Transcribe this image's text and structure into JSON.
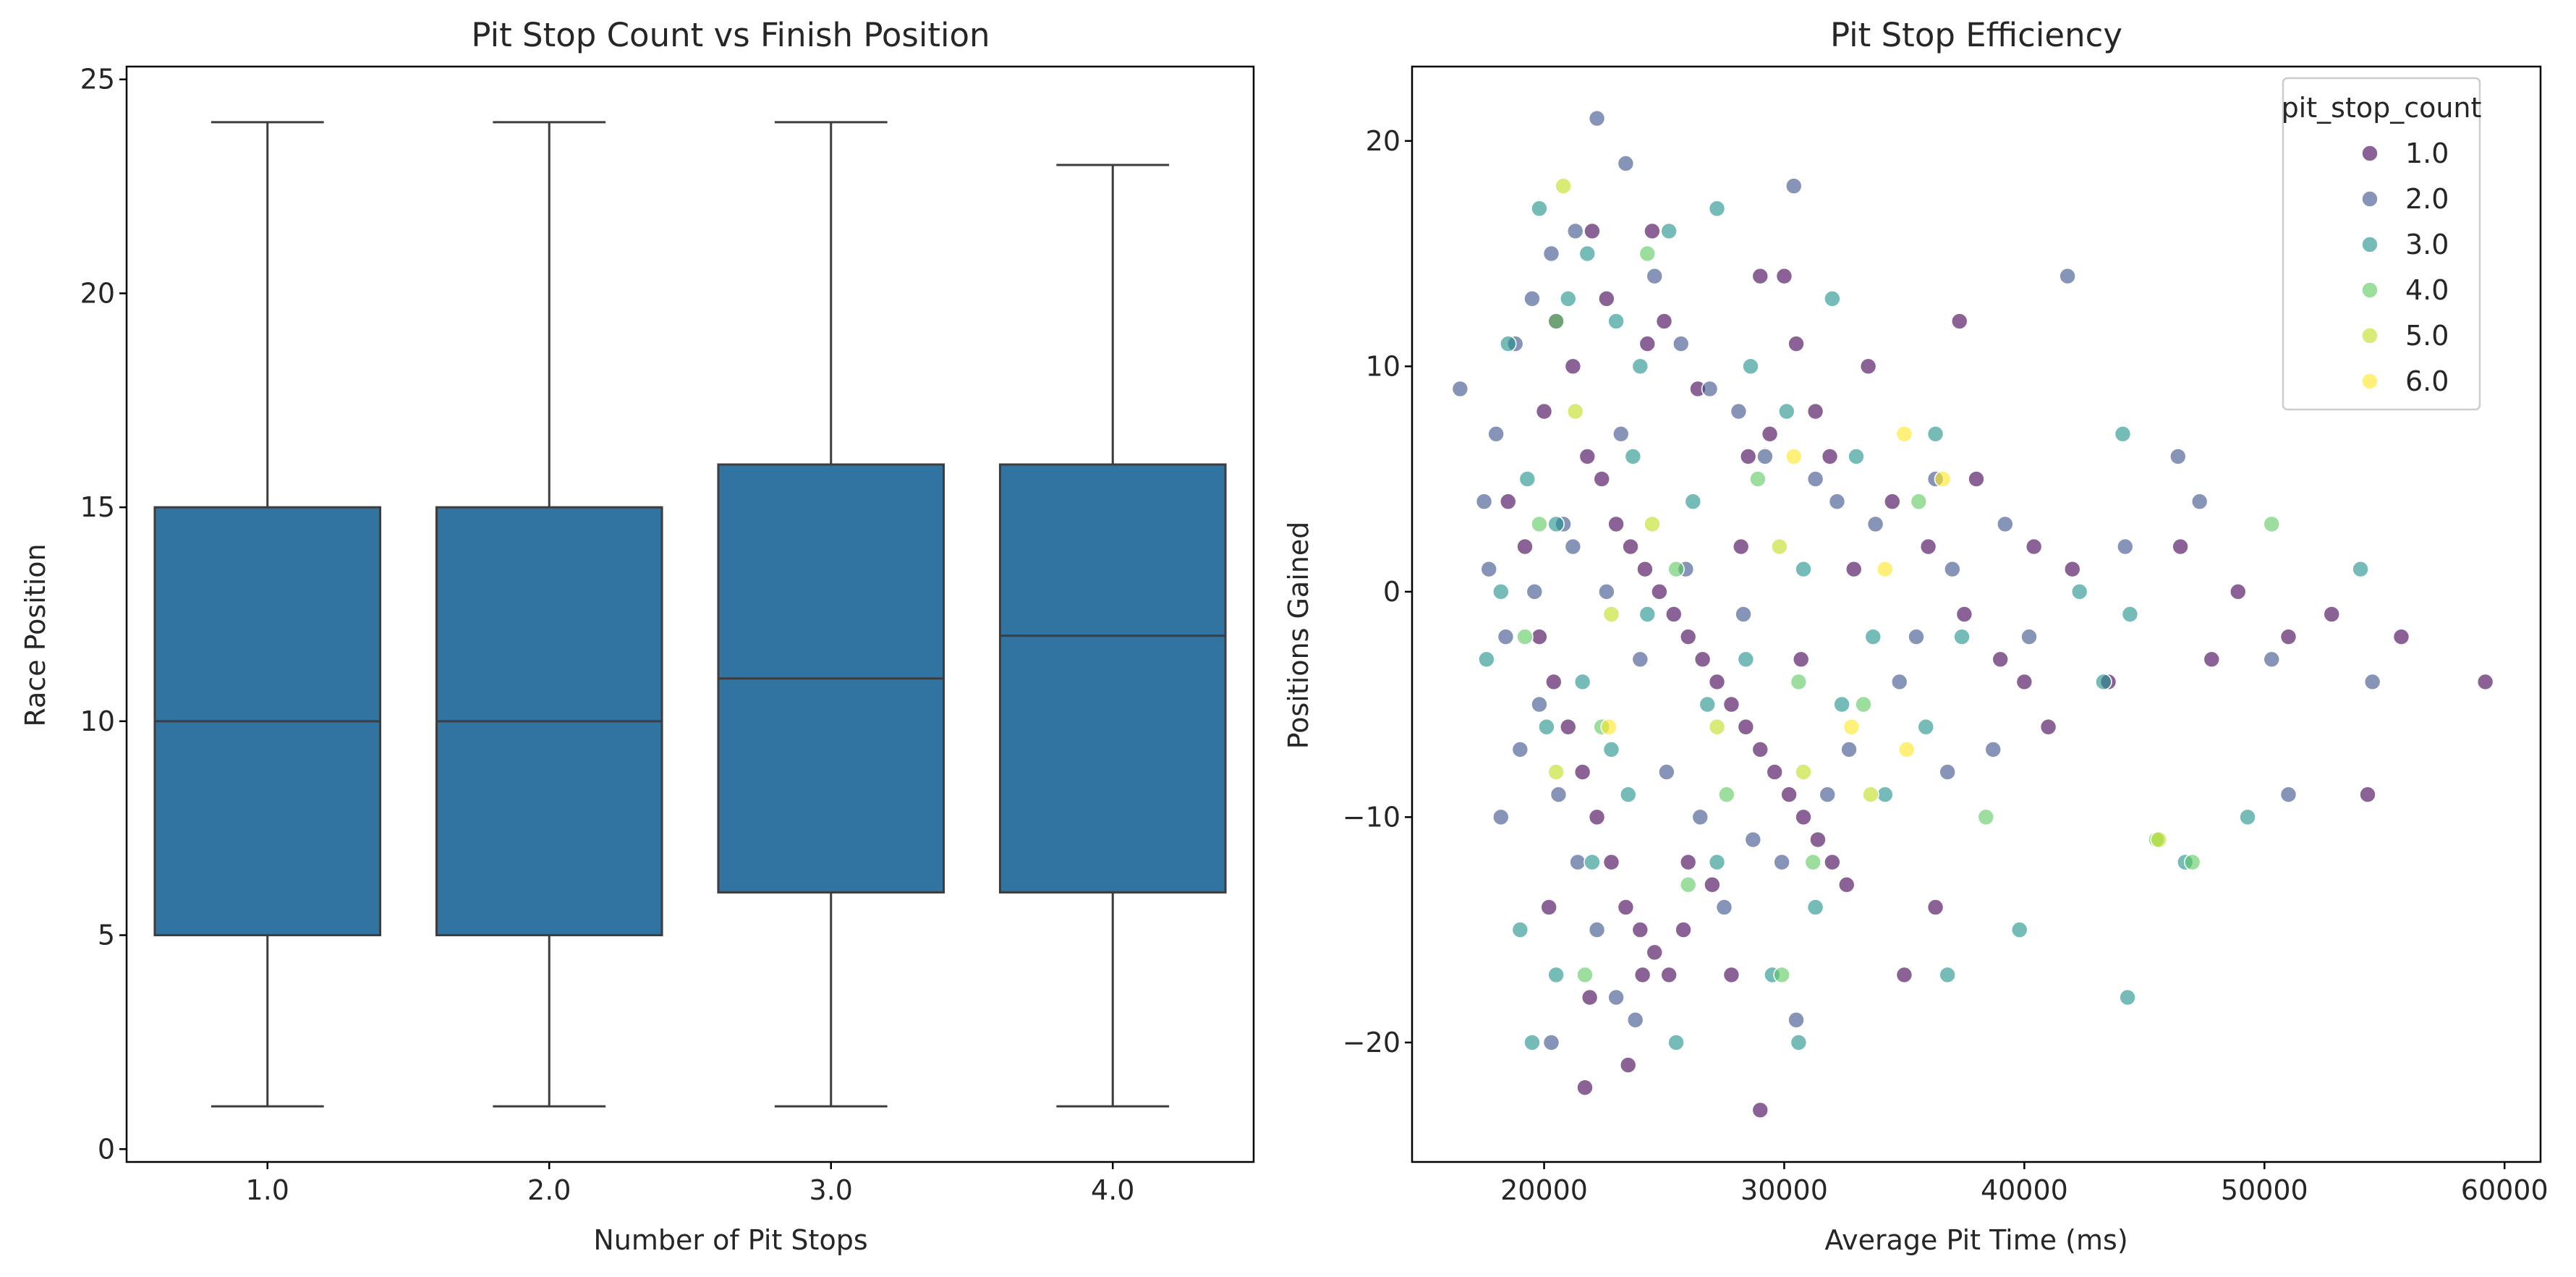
{
  "chart_data": [
    {
      "type": "box",
      "title": "Pit Stop Count vs Finish Position",
      "xlabel": "Number of Pit Stops",
      "ylabel": "Race Position",
      "ylim": [
        -0.3,
        25.3
      ],
      "yticks": [
        0,
        5,
        10,
        15,
        20,
        25
      ],
      "categories": [
        "1.0",
        "2.0",
        "3.0",
        "4.0"
      ],
      "box_color": "#3274a1",
      "boxes": [
        {
          "whislo": 1,
          "q1": 5,
          "median": 10,
          "q3": 15,
          "whishi": 24
        },
        {
          "whislo": 1,
          "q1": 5,
          "median": 10,
          "q3": 15,
          "whishi": 24
        },
        {
          "whislo": 1,
          "q1": 6,
          "median": 11,
          "q3": 16,
          "whishi": 24
        },
        {
          "whislo": 1,
          "q1": 6,
          "median": 12,
          "q3": 16,
          "whishi": 23
        }
      ]
    },
    {
      "type": "scatter",
      "title": "Pit Stop Efficiency",
      "xlabel": "Average Pit Time (ms)",
      "ylabel": "Positions Gained",
      "xlim": [
        14500,
        61500
      ],
      "ylim": [
        -25.3,
        23.3
      ],
      "xticks": [
        20000,
        30000,
        40000,
        50000,
        60000
      ],
      "yticks": [
        -20,
        -10,
        0,
        10,
        20
      ],
      "grid": false,
      "legend_position": "top-right",
      "legend_title": "pit_stop_count",
      "series": [
        {
          "name": "1.0",
          "color": "#440154",
          "points": [
            [
              20000,
              8
            ],
            [
              20500,
              12
            ],
            [
              21200,
              10
            ],
            [
              21800,
              6
            ],
            [
              22400,
              5
            ],
            [
              23000,
              3
            ],
            [
              23600,
              2
            ],
            [
              24200,
              1
            ],
            [
              24800,
              0
            ],
            [
              25400,
              -1
            ],
            [
              26000,
              -2
            ],
            [
              26600,
              -3
            ],
            [
              27200,
              -4
            ],
            [
              27800,
              -5
            ],
            [
              28400,
              -6
            ],
            [
              29000,
              -7
            ],
            [
              29600,
              -8
            ],
            [
              30200,
              -9
            ],
            [
              30800,
              -10
            ],
            [
              31400,
              -11
            ],
            [
              32000,
              -12
            ],
            [
              32600,
              -13
            ],
            [
              18500,
              4
            ],
            [
              19200,
              2
            ],
            [
              19800,
              -2
            ],
            [
              20400,
              -4
            ],
            [
              21000,
              -6
            ],
            [
              21600,
              -8
            ],
            [
              22200,
              -10
            ],
            [
              22800,
              -12
            ],
            [
              23400,
              -14
            ],
            [
              24000,
              -15
            ],
            [
              24600,
              -16
            ],
            [
              25200,
              -17
            ],
            [
              21700,
              -22
            ],
            [
              23500,
              -21
            ],
            [
              29000,
              -23
            ],
            [
              33500,
              10
            ],
            [
              37300,
              12
            ],
            [
              30000,
              14
            ],
            [
              29000,
              14
            ],
            [
              24500,
              16
            ],
            [
              22000,
              16
            ],
            [
              34500,
              4
            ],
            [
              36000,
              2
            ],
            [
              37500,
              -1
            ],
            [
              39000,
              -3
            ],
            [
              40000,
              -4
            ],
            [
              41000,
              -6
            ],
            [
              42000,
              1
            ],
            [
              43500,
              -4
            ],
            [
              46500,
              2
            ],
            [
              47800,
              -3
            ],
            [
              48900,
              0
            ],
            [
              51000,
              -2
            ],
            [
              52800,
              -1
            ],
            [
              54300,
              -9
            ],
            [
              55700,
              -2
            ],
            [
              59200,
              -4
            ],
            [
              40400,
              2
            ],
            [
              38000,
              5
            ],
            [
              36300,
              -14
            ],
            [
              35000,
              -17
            ],
            [
              27800,
              -17
            ],
            [
              25800,
              -15
            ],
            [
              27000,
              -13
            ],
            [
              28500,
              6
            ],
            [
              31300,
              8
            ],
            [
              26400,
              9
            ],
            [
              24300,
              11
            ],
            [
              22600,
              13
            ],
            [
              20200,
              -14
            ],
            [
              21900,
              -18
            ],
            [
              24100,
              -17
            ],
            [
              26000,
              -12
            ],
            [
              28200,
              2
            ],
            [
              30700,
              -3
            ],
            [
              32900,
              1
            ],
            [
              31900,
              6
            ],
            [
              30500,
              11
            ],
            [
              29400,
              7
            ],
            [
              25000,
              12
            ]
          ]
        },
        {
          "name": "2.0",
          "color": "#3b528b",
          "points": [
            [
              16500,
              9
            ],
            [
              17500,
              4
            ],
            [
              18000,
              7
            ],
            [
              18800,
              11
            ],
            [
              19500,
              13
            ],
            [
              20300,
              15
            ],
            [
              21300,
              16
            ],
            [
              22200,
              21
            ],
            [
              23400,
              19
            ],
            [
              24600,
              14
            ],
            [
              25700,
              11
            ],
            [
              26900,
              9
            ],
            [
              28100,
              8
            ],
            [
              29200,
              6
            ],
            [
              30400,
              18
            ],
            [
              31300,
              5
            ],
            [
              32200,
              4
            ],
            [
              18200,
              -10
            ],
            [
              19000,
              -7
            ],
            [
              19800,
              -5
            ],
            [
              20600,
              -9
            ],
            [
              21400,
              -12
            ],
            [
              22200,
              -15
            ],
            [
              23000,
              -18
            ],
            [
              23800,
              -19
            ],
            [
              20300,
              -20
            ],
            [
              30500,
              -19
            ],
            [
              36800,
              -8
            ],
            [
              38700,
              -7
            ],
            [
              40200,
              -2
            ],
            [
              41800,
              14
            ],
            [
              44200,
              2
            ],
            [
              46400,
              6
            ],
            [
              47300,
              4
            ],
            [
              50300,
              -3
            ],
            [
              51000,
              -9
            ],
            [
              54500,
              -4
            ],
            [
              37000,
              1
            ],
            [
              35500,
              -2
            ],
            [
              33800,
              3
            ],
            [
              32700,
              -7
            ],
            [
              27500,
              -14
            ],
            [
              25100,
              -8
            ],
            [
              24000,
              -3
            ],
            [
              22600,
              0
            ],
            [
              21200,
              2
            ],
            [
              19600,
              0
            ],
            [
              18400,
              -2
            ],
            [
              17700,
              1
            ],
            [
              26500,
              -10
            ],
            [
              28700,
              -11
            ],
            [
              29900,
              -12
            ],
            [
              31800,
              -9
            ],
            [
              34800,
              -4
            ],
            [
              36300,
              5
            ],
            [
              39200,
              3
            ],
            [
              20800,
              3
            ],
            [
              23200,
              7
            ],
            [
              25900,
              1
            ],
            [
              28300,
              -1
            ]
          ]
        },
        {
          "name": "3.0",
          "color": "#21918c",
          "points": [
            [
              18500,
              11
            ],
            [
              19800,
              17
            ],
            [
              21000,
              13
            ],
            [
              21800,
              15
            ],
            [
              23000,
              12
            ],
            [
              24000,
              10
            ],
            [
              25200,
              16
            ],
            [
              27200,
              17
            ],
            [
              28600,
              10
            ],
            [
              30100,
              8
            ],
            [
              32000,
              13
            ],
            [
              33000,
              6
            ],
            [
              19000,
              -15
            ],
            [
              19500,
              -20
            ],
            [
              20500,
              -17
            ],
            [
              22000,
              -12
            ],
            [
              23500,
              -9
            ],
            [
              25500,
              -20
            ],
            [
              27200,
              -12
            ],
            [
              29500,
              -17
            ],
            [
              30600,
              -20
            ],
            [
              31300,
              -14
            ],
            [
              36800,
              -17
            ],
            [
              39800,
              -15
            ],
            [
              44300,
              -18
            ],
            [
              46700,
              -12
            ],
            [
              49300,
              -10
            ],
            [
              54000,
              1
            ],
            [
              42300,
              0
            ],
            [
              44400,
              -1
            ],
            [
              44100,
              7
            ],
            [
              43300,
              -4
            ],
            [
              37400,
              -2
            ],
            [
              35900,
              -6
            ],
            [
              34200,
              -9
            ],
            [
              36300,
              7
            ],
            [
              33700,
              -2
            ],
            [
              18200,
              0
            ],
            [
              19300,
              5
            ],
            [
              20500,
              3
            ],
            [
              21600,
              -4
            ],
            [
              22800,
              -7
            ],
            [
              24300,
              -1
            ],
            [
              26200,
              4
            ],
            [
              28400,
              -3
            ],
            [
              30800,
              1
            ],
            [
              32400,
              -5
            ],
            [
              17600,
              -3
            ],
            [
              20100,
              -6
            ],
            [
              23700,
              6
            ],
            [
              26800,
              -5
            ]
          ]
        },
        {
          "name": "4.0",
          "color": "#5ec962",
          "points": [
            [
              20500,
              12
            ],
            [
              24300,
              15
            ],
            [
              21700,
              -17
            ],
            [
              26000,
              -13
            ],
            [
              27600,
              -9
            ],
            [
              29900,
              -17
            ],
            [
              35600,
              4
            ],
            [
              33300,
              -5
            ],
            [
              31200,
              -12
            ],
            [
              38400,
              -10
            ],
            [
              50300,
              3
            ],
            [
              45500,
              -11
            ],
            [
              47000,
              -12
            ],
            [
              22400,
              -6
            ],
            [
              19200,
              -2
            ],
            [
              25500,
              1
            ],
            [
              28900,
              5
            ],
            [
              30600,
              -4
            ],
            [
              19800,
              3
            ]
          ]
        },
        {
          "name": "5.0",
          "color": "#c2df23",
          "points": [
            [
              20800,
              18
            ],
            [
              21300,
              8
            ],
            [
              22800,
              -1
            ],
            [
              24500,
              3
            ],
            [
              27200,
              -6
            ],
            [
              30800,
              -8
            ],
            [
              33600,
              -9
            ],
            [
              45600,
              -11
            ],
            [
              20500,
              -8
            ],
            [
              29800,
              2
            ]
          ]
        },
        {
          "name": "6.0",
          "color": "#fde725",
          "points": [
            [
              35000,
              7
            ],
            [
              36600,
              5
            ],
            [
              35100,
              -7
            ],
            [
              34200,
              1
            ],
            [
              30400,
              6
            ],
            [
              22700,
              -6
            ],
            [
              32800,
              -6
            ]
          ]
        }
      ]
    }
  ]
}
